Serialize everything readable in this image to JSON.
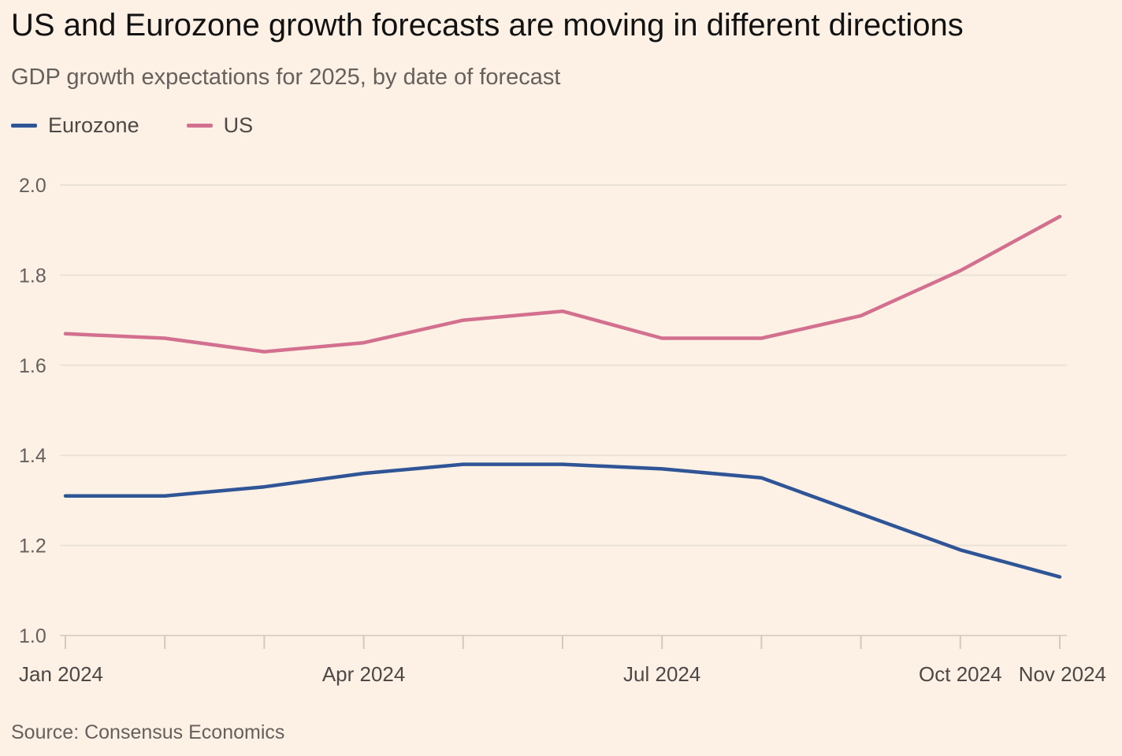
{
  "title": "US and Eurozone growth forecasts are moving in different directions",
  "subtitle": "GDP growth expectations for 2025, by date of forecast",
  "source": "Source: Consensus Economics",
  "legend": [
    {
      "name": "Eurozone",
      "color": "#2f5597"
    },
    {
      "name": "US",
      "color": "#d3708f"
    }
  ],
  "chart_data": {
    "type": "line",
    "title": "US and Eurozone growth forecasts are moving in different directions",
    "subtitle": "GDP growth expectations for 2025, by date of forecast",
    "xlabel": "",
    "ylabel": "",
    "x": [
      "Jan 2024",
      "Feb 2024",
      "Mar 2024",
      "Apr 2024",
      "May 2024",
      "Jun 2024",
      "Jul 2024",
      "Aug 2024",
      "Sep 2024",
      "Oct 2024",
      "Nov 2024"
    ],
    "x_tick_labels": [
      "Jan 2024",
      "Apr 2024",
      "Jul 2024",
      "Oct 2024",
      "Nov 2024"
    ],
    "ylim": [
      1.0,
      2.0
    ],
    "y_ticks": [
      "1.0",
      "1.2",
      "1.4",
      "1.6",
      "1.8",
      "2.0"
    ],
    "grid": true,
    "legend_position": "top-left",
    "series": [
      {
        "name": "Eurozone",
        "color": "#2f5597",
        "values": [
          1.31,
          1.31,
          1.33,
          1.36,
          1.38,
          1.38,
          1.37,
          1.35,
          1.27,
          1.19,
          1.13
        ]
      },
      {
        "name": "US",
        "color": "#d3708f",
        "values": [
          1.67,
          1.66,
          1.63,
          1.65,
          1.7,
          1.72,
          1.66,
          1.66,
          1.71,
          1.81,
          1.93
        ]
      }
    ]
  }
}
